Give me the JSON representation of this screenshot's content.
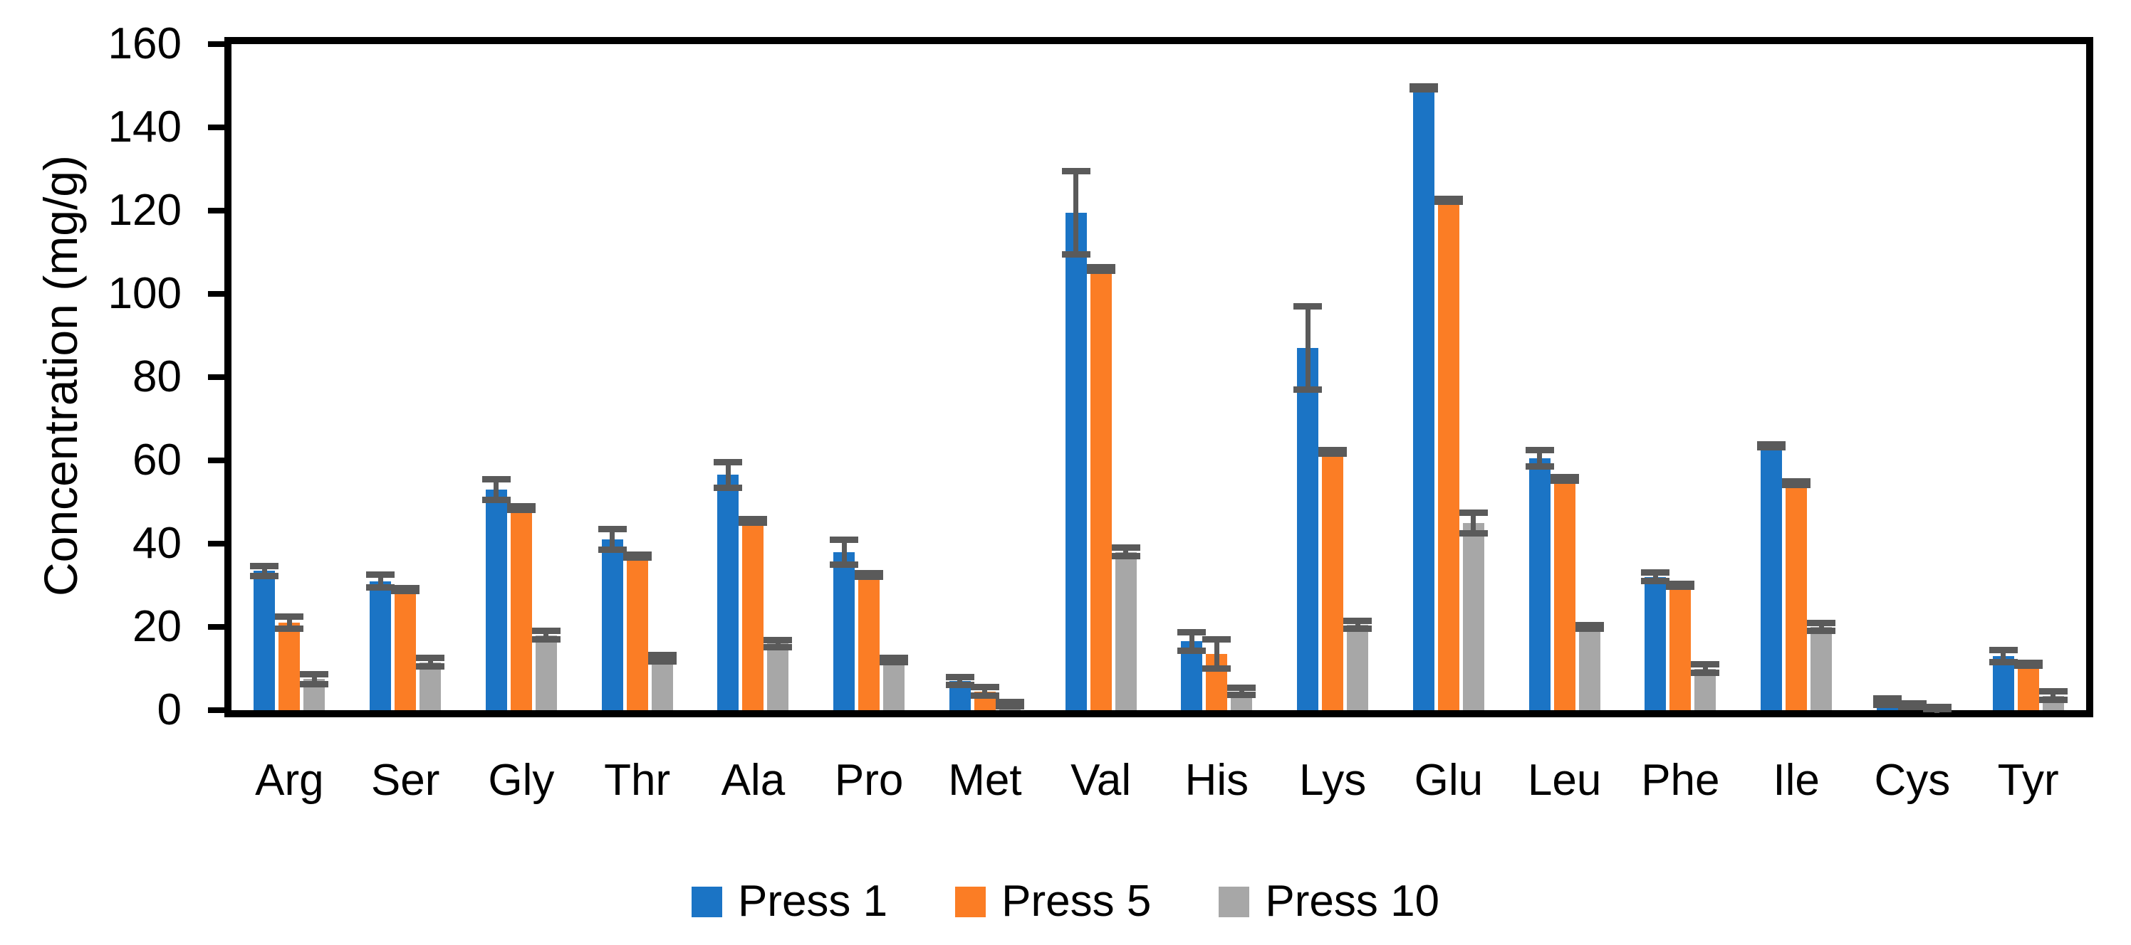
{
  "chart_data": {
    "type": "bar",
    "title": "",
    "ylabel": "Concentration (mg/g)",
    "xlabel": "",
    "ylim": [
      0,
      160
    ],
    "ytick_step": 20,
    "ytick_labels": [
      "0",
      "20",
      "40",
      "60",
      "80",
      "100",
      "120",
      "140",
      "160"
    ],
    "grid": false,
    "legend_position": "bottom",
    "categories": [
      "Arg",
      "Ser",
      "Gly",
      "Thr",
      "Ala",
      "Pro",
      "Met",
      "Val",
      "His",
      "Lys",
      "Glu",
      "Leu",
      "Phe",
      "Ile",
      "Cys",
      "Tyr"
    ],
    "series": [
      {
        "name": "Press 1",
        "color": "#1B74C5",
        "values": [
          33.5,
          31,
          53,
          41,
          56.5,
          38,
          7,
          119.5,
          16.5,
          87,
          149.5,
          60.5,
          32,
          63.5,
          2,
          13
        ],
        "errors": [
          1.2,
          1.5,
          2.5,
          2.5,
          3,
          3,
          1,
          10,
          2.3,
          10,
          0.4,
          2,
          1,
          0.4,
          0.8,
          1.5
        ]
      },
      {
        "name": "Press 5",
        "color": "#FB7D25",
        "values": [
          21,
          29,
          48.5,
          37,
          45.5,
          32.5,
          4.5,
          106,
          13.5,
          62,
          122.5,
          55.5,
          30,
          54.5,
          1.2,
          11
        ],
        "errors": [
          1.5,
          0.4,
          0.4,
          0.4,
          0.4,
          0.4,
          1,
          0.4,
          3.5,
          0.4,
          0.4,
          0.4,
          0.4,
          0.4,
          0.5,
          0.4
        ]
      },
      {
        "name": "Press 10",
        "color": "#A7A7A7",
        "values": [
          7.5,
          11.5,
          18,
          12.5,
          16,
          12,
          1.5,
          38,
          4.5,
          20.5,
          45,
          20,
          10,
          20,
          0.5,
          3.5
        ],
        "errors": [
          1.2,
          1,
          1,
          0.8,
          0.8,
          0.5,
          0.5,
          1,
          0.8,
          1,
          2.5,
          0.5,
          1,
          1,
          0.3,
          1
        ]
      }
    ],
    "error_bar_color": "#5A5A5A",
    "axis_color": "#000000"
  }
}
